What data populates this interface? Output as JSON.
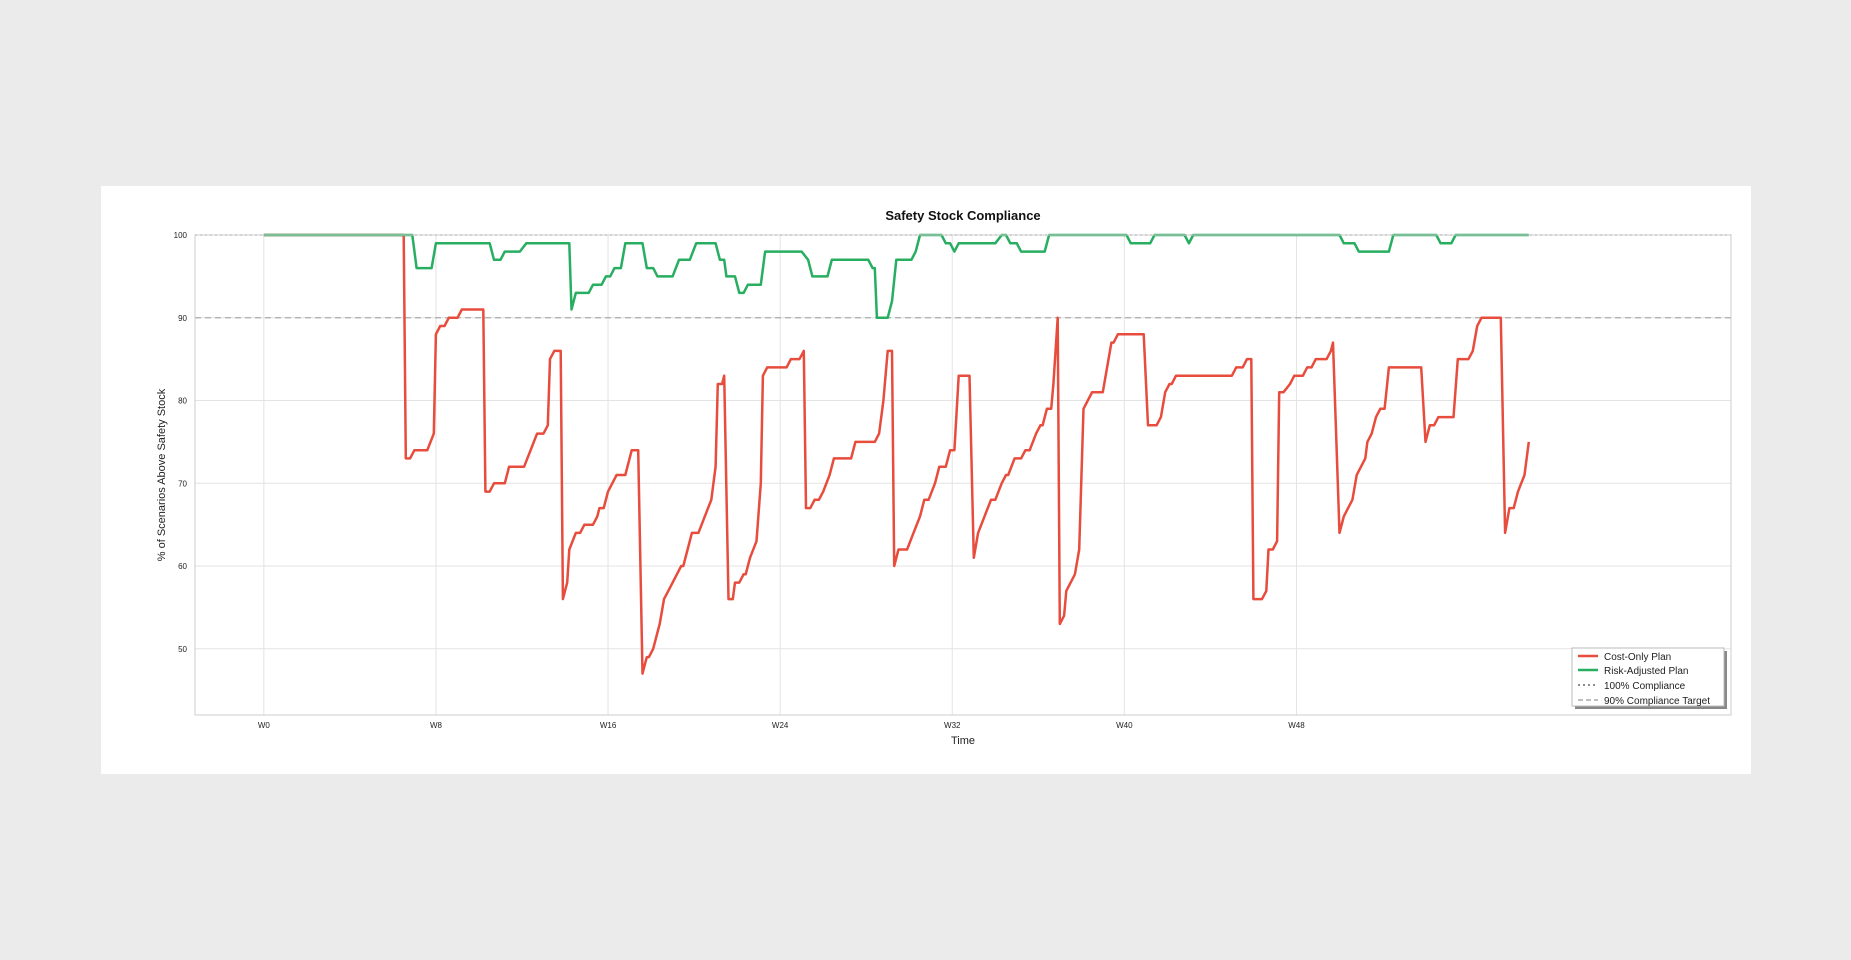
{
  "chart_data": {
    "type": "line",
    "title": "Safety Stock Compliance",
    "xlabel": "Time",
    "ylabel": "% of Scenarios Above Safety Stock",
    "xlim": [
      -3.2,
      68.2
    ],
    "ylim": [
      42,
      100
    ],
    "x_ticks": [
      0,
      8,
      16,
      24,
      32,
      40,
      48
    ],
    "x_tick_labels": [
      "W0",
      "W8",
      "W16",
      "W24",
      "W32",
      "W40",
      "W48"
    ],
    "y_ticks": [
      50,
      60,
      70,
      80,
      90,
      100
    ],
    "y_tick_labels": [
      "50",
      "60",
      "70",
      "80",
      "90",
      "100"
    ],
    "grid": true,
    "legend_position": "bottom-right",
    "colors": {
      "cost_only": "#e74c3c",
      "risk_adjusted": "#27ae60",
      "reference": "#888888"
    },
    "reference_lines": [
      {
        "name": "100% Compliance",
        "y": 100,
        "style": "dotted"
      },
      {
        "name": "90% Compliance Target",
        "y": 90,
        "style": "dashed"
      }
    ],
    "series": [
      {
        "name": "Cost-Only Plan",
        "color": "#e74c3c",
        "points": [
          [
            0,
            100
          ],
          [
            6.5,
            100
          ],
          [
            6.6,
            73
          ],
          [
            6.8,
            73
          ],
          [
            7.0,
            74
          ],
          [
            7.6,
            74
          ],
          [
            7.9,
            76
          ],
          [
            8.0,
            88
          ],
          [
            8.2,
            89
          ],
          [
            8.4,
            89
          ],
          [
            8.6,
            90
          ],
          [
            9.0,
            90
          ],
          [
            9.2,
            91
          ],
          [
            10.2,
            91
          ],
          [
            10.3,
            69
          ],
          [
            10.5,
            69
          ],
          [
            10.7,
            70
          ],
          [
            11.2,
            70
          ],
          [
            11.4,
            72
          ],
          [
            12.1,
            72
          ],
          [
            12.4,
            74
          ],
          [
            12.7,
            76
          ],
          [
            13.0,
            76
          ],
          [
            13.2,
            77
          ],
          [
            13.3,
            85
          ],
          [
            13.5,
            86
          ],
          [
            13.8,
            86
          ],
          [
            13.9,
            56
          ],
          [
            14.1,
            58
          ],
          [
            14.2,
            62
          ],
          [
            14.5,
            64
          ],
          [
            14.7,
            64
          ],
          [
            14.9,
            65
          ],
          [
            15.3,
            65
          ],
          [
            15.5,
            66
          ],
          [
            15.6,
            67
          ],
          [
            15.8,
            67
          ],
          [
            16.0,
            69
          ],
          [
            16.2,
            70
          ],
          [
            16.4,
            71
          ],
          [
            16.8,
            71
          ],
          [
            17.0,
            73
          ],
          [
            17.1,
            74
          ],
          [
            17.4,
            74
          ],
          [
            17.6,
            47
          ],
          [
            17.8,
            49
          ],
          [
            17.9,
            49
          ],
          [
            18.1,
            50
          ],
          [
            18.3,
            52
          ],
          [
            18.4,
            53
          ],
          [
            18.6,
            56
          ],
          [
            18.8,
            57
          ],
          [
            19.2,
            59
          ],
          [
            19.4,
            60
          ],
          [
            19.5,
            60
          ],
          [
            19.7,
            62
          ],
          [
            19.9,
            64
          ],
          [
            20.2,
            64
          ],
          [
            20.5,
            66
          ],
          [
            20.8,
            68
          ],
          [
            21.0,
            72
          ],
          [
            21.1,
            82
          ],
          [
            21.3,
            82
          ],
          [
            21.4,
            83
          ],
          [
            21.6,
            56
          ],
          [
            21.8,
            56
          ],
          [
            21.9,
            58
          ],
          [
            22.1,
            58
          ],
          [
            22.3,
            59
          ],
          [
            22.4,
            59
          ],
          [
            22.6,
            61
          ],
          [
            22.9,
            63
          ],
          [
            23.1,
            70
          ],
          [
            23.2,
            83
          ],
          [
            23.4,
            84
          ],
          [
            24.3,
            84
          ],
          [
            24.5,
            85
          ],
          [
            24.9,
            85
          ],
          [
            25.1,
            86
          ],
          [
            25.2,
            67
          ],
          [
            25.4,
            67
          ],
          [
            25.6,
            68
          ],
          [
            25.8,
            68
          ],
          [
            26.0,
            69
          ],
          [
            26.3,
            71
          ],
          [
            26.5,
            73
          ],
          [
            27.3,
            73
          ],
          [
            27.5,
            75
          ],
          [
            28.4,
            75
          ],
          [
            28.6,
            76
          ],
          [
            28.8,
            80
          ],
          [
            29.0,
            86
          ],
          [
            29.2,
            86
          ],
          [
            29.3,
            60
          ],
          [
            29.5,
            62
          ],
          [
            29.9,
            62
          ],
          [
            30.2,
            64
          ],
          [
            30.5,
            66
          ],
          [
            30.7,
            68
          ],
          [
            30.9,
            68
          ],
          [
            31.2,
            70
          ],
          [
            31.4,
            72
          ],
          [
            31.7,
            72
          ],
          [
            31.9,
            74
          ],
          [
            32.1,
            74
          ],
          [
            32.3,
            83
          ],
          [
            32.8,
            83
          ],
          [
            33.0,
            61
          ],
          [
            33.2,
            64
          ],
          [
            33.5,
            66
          ],
          [
            33.8,
            68
          ],
          [
            34.0,
            68
          ],
          [
            34.3,
            70
          ],
          [
            34.5,
            71
          ],
          [
            34.6,
            71
          ],
          [
            34.9,
            73
          ],
          [
            35.2,
            73
          ],
          [
            35.4,
            74
          ],
          [
            35.6,
            74
          ],
          [
            35.9,
            76
          ],
          [
            36.1,
            77
          ],
          [
            36.2,
            77
          ],
          [
            36.4,
            79
          ],
          [
            36.6,
            79
          ],
          [
            36.7,
            82
          ],
          [
            36.9,
            90
          ],
          [
            37.0,
            53
          ],
          [
            37.2,
            54
          ],
          [
            37.3,
            57
          ],
          [
            37.7,
            59
          ],
          [
            37.9,
            62
          ],
          [
            38.1,
            79
          ],
          [
            38.3,
            80
          ],
          [
            38.5,
            81
          ],
          [
            39.0,
            81
          ],
          [
            39.2,
            84
          ],
          [
            39.4,
            87
          ],
          [
            39.5,
            87
          ],
          [
            39.7,
            88
          ],
          [
            40.9,
            88
          ],
          [
            41.1,
            77
          ],
          [
            41.5,
            77
          ],
          [
            41.7,
            78
          ],
          [
            41.9,
            81
          ],
          [
            42.1,
            82
          ],
          [
            42.2,
            82
          ],
          [
            42.4,
            83
          ],
          [
            45.0,
            83
          ],
          [
            45.2,
            84
          ],
          [
            45.5,
            84
          ],
          [
            45.7,
            85
          ],
          [
            45.9,
            85
          ],
          [
            46.0,
            56
          ],
          [
            46.4,
            56
          ],
          [
            46.6,
            57
          ],
          [
            46.7,
            62
          ],
          [
            46.9,
            62
          ],
          [
            47.1,
            63
          ],
          [
            47.2,
            81
          ],
          [
            47.4,
            81
          ],
          [
            47.7,
            82
          ],
          [
            47.9,
            83
          ],
          [
            48.3,
            83
          ],
          [
            48.5,
            84
          ],
          [
            48.7,
            84
          ],
          [
            48.9,
            85
          ],
          [
            49.4,
            85
          ],
          [
            49.6,
            86
          ],
          [
            49.7,
            87
          ],
          [
            50.0,
            64
          ],
          [
            50.2,
            66
          ],
          [
            50.4,
            67
          ],
          [
            50.6,
            68
          ],
          [
            50.8,
            71
          ],
          [
            51.0,
            72
          ],
          [
            51.2,
            73
          ],
          [
            51.3,
            75
          ],
          [
            51.5,
            76
          ],
          [
            51.7,
            78
          ],
          [
            51.9,
            79
          ],
          [
            52.1,
            79
          ],
          [
            52.3,
            84
          ],
          [
            53.8,
            84
          ],
          [
            54.0,
            75
          ],
          [
            54.2,
            77
          ],
          [
            54.4,
            77
          ],
          [
            54.6,
            78
          ],
          [
            55.3,
            78
          ],
          [
            55.5,
            85
          ],
          [
            56.0,
            85
          ],
          [
            56.2,
            86
          ],
          [
            56.4,
            89
          ],
          [
            56.6,
            90
          ],
          [
            57.5,
            90
          ],
          [
            57.7,
            64
          ],
          [
            57.9,
            67
          ],
          [
            58.1,
            67
          ],
          [
            58.3,
            69
          ],
          [
            58.6,
            71
          ],
          [
            58.8,
            75
          ]
        ]
      },
      {
        "name": "Risk-Adjusted Plan",
        "color": "#27ae60",
        "points": [
          [
            0,
            100
          ],
          [
            6.9,
            100
          ],
          [
            7.1,
            96
          ],
          [
            7.8,
            96
          ],
          [
            8.0,
            99
          ],
          [
            10.5,
            99
          ],
          [
            10.7,
            97
          ],
          [
            11.0,
            97
          ],
          [
            11.2,
            98
          ],
          [
            11.9,
            98
          ],
          [
            12.2,
            99
          ],
          [
            14.2,
            99
          ],
          [
            14.3,
            91
          ],
          [
            14.5,
            93
          ],
          [
            15.1,
            93
          ],
          [
            15.3,
            94
          ],
          [
            15.7,
            94
          ],
          [
            15.9,
            95
          ],
          [
            16.1,
            95
          ],
          [
            16.3,
            96
          ],
          [
            16.6,
            96
          ],
          [
            16.8,
            99
          ],
          [
            17.6,
            99
          ],
          [
            17.8,
            96
          ],
          [
            18.1,
            96
          ],
          [
            18.3,
            95
          ],
          [
            19.0,
            95
          ],
          [
            19.3,
            97
          ],
          [
            19.8,
            97
          ],
          [
            20.1,
            99
          ],
          [
            21.0,
            99
          ],
          [
            21.2,
            97
          ],
          [
            21.4,
            97
          ],
          [
            21.5,
            95
          ],
          [
            21.9,
            95
          ],
          [
            22.1,
            93
          ],
          [
            22.3,
            93
          ],
          [
            22.5,
            94
          ],
          [
            23.1,
            94
          ],
          [
            23.3,
            98
          ],
          [
            25.0,
            98
          ],
          [
            25.3,
            97
          ],
          [
            25.5,
            95
          ],
          [
            26.2,
            95
          ],
          [
            26.4,
            97
          ],
          [
            28.1,
            97
          ],
          [
            28.3,
            96
          ],
          [
            28.4,
            96
          ],
          [
            28.5,
            90
          ],
          [
            29.0,
            90
          ],
          [
            29.2,
            92
          ],
          [
            29.4,
            97
          ],
          [
            30.1,
            97
          ],
          [
            30.3,
            98
          ],
          [
            30.5,
            100
          ],
          [
            30.7,
            100
          ],
          [
            31.5,
            100
          ],
          [
            31.7,
            99
          ],
          [
            31.9,
            99
          ],
          [
            32.1,
            98
          ],
          [
            32.3,
            99
          ],
          [
            34.0,
            99
          ],
          [
            34.3,
            100
          ],
          [
            34.5,
            100
          ],
          [
            34.7,
            99
          ],
          [
            35.0,
            99
          ],
          [
            35.2,
            98
          ],
          [
            36.3,
            98
          ],
          [
            36.5,
            100
          ],
          [
            38.1,
            100
          ],
          [
            38.3,
            100
          ],
          [
            39.5,
            100
          ],
          [
            39.7,
            100
          ],
          [
            40.1,
            100
          ],
          [
            40.3,
            99
          ],
          [
            41.2,
            99
          ],
          [
            41.4,
            100
          ],
          [
            42.8,
            100
          ],
          [
            43.0,
            99
          ],
          [
            43.2,
            100
          ],
          [
            50.0,
            100
          ],
          [
            50.2,
            99
          ],
          [
            50.7,
            99
          ],
          [
            50.9,
            98
          ],
          [
            52.3,
            98
          ],
          [
            52.5,
            100
          ],
          [
            53.6,
            100
          ],
          [
            53.8,
            100
          ],
          [
            54.5,
            100
          ],
          [
            54.7,
            99
          ],
          [
            55.2,
            99
          ],
          [
            55.4,
            100
          ],
          [
            58.8,
            100
          ]
        ]
      }
    ]
  },
  "legend": {
    "items": [
      {
        "label": "Cost-Only Plan",
        "color": "#e74c3c",
        "style": "solid"
      },
      {
        "label": "Risk-Adjusted Plan",
        "color": "#27ae60",
        "style": "solid"
      },
      {
        "label": "100% Compliance",
        "color": "#666666",
        "style": "dotted"
      },
      {
        "label": "90% Compliance Target",
        "color": "#aaaaaa",
        "style": "dashed"
      }
    ]
  }
}
